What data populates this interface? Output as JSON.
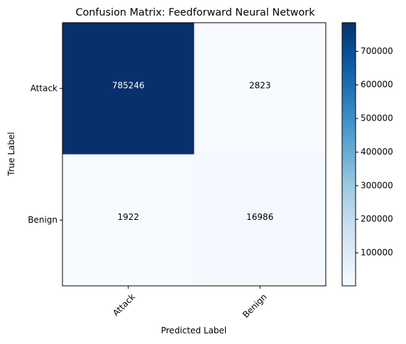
{
  "chart_data": {
    "type": "heatmap",
    "title": "Confusion Matrix: Feedforward Neural Network",
    "xlabel": "Predicted Label",
    "ylabel": "True Label",
    "x_categories": [
      "Attack",
      "Benign"
    ],
    "y_categories": [
      "Attack",
      "Benign"
    ],
    "values": [
      [
        785246,
        2823
      ],
      [
        1922,
        16986
      ]
    ],
    "colormap": "Blues",
    "colorbar": {
      "min": 1922,
      "max": 785246,
      "ticks": [
        100000,
        200000,
        300000,
        400000,
        500000,
        600000,
        700000
      ],
      "tick_labels": [
        "100000",
        "200000",
        "300000",
        "400000",
        "500000",
        "600000",
        "700000"
      ]
    },
    "grid": false,
    "legend": "colorbar-right"
  }
}
